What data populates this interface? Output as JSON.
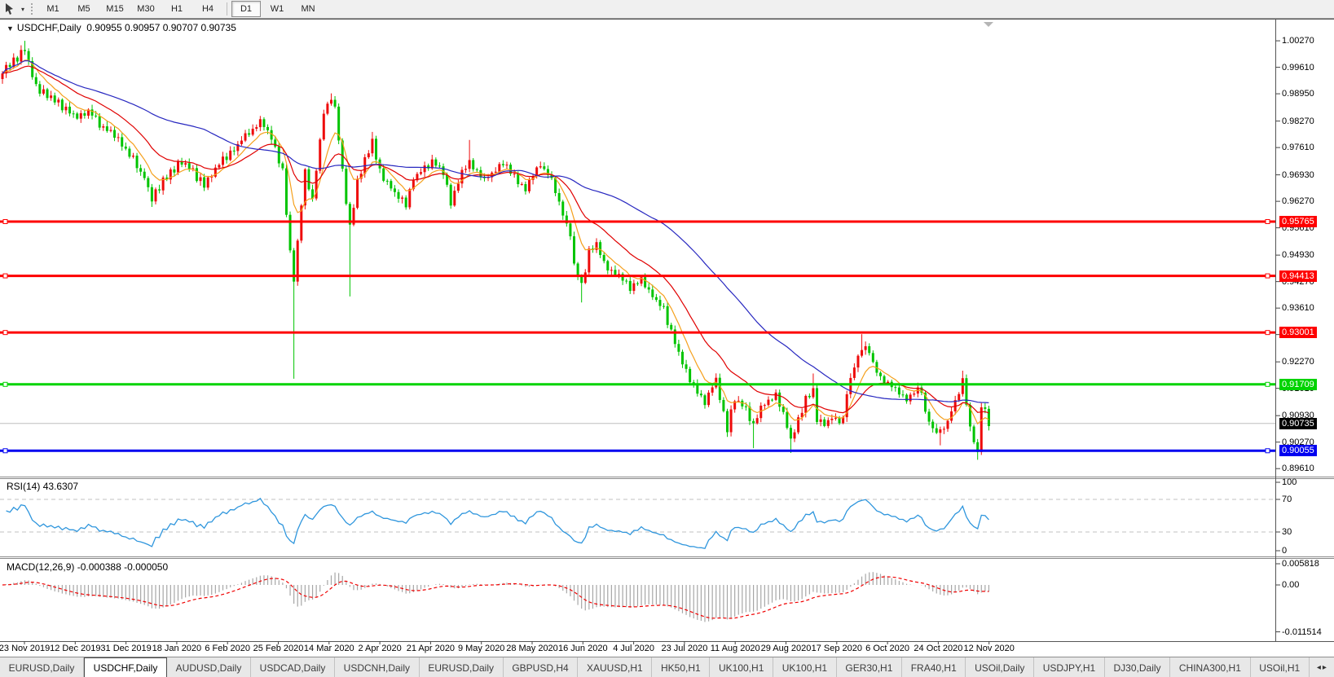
{
  "toolbar": {
    "cursor_tool": "pointer-tool",
    "dropdown_caret": "▾",
    "timeframes": [
      "M1",
      "M5",
      "M15",
      "M30",
      "H1",
      "H4",
      "D1",
      "W1",
      "MN"
    ],
    "active": "D1"
  },
  "tabs": {
    "items": [
      "EURUSD,Daily",
      "USDCHF,Daily",
      "AUDUSD,Daily",
      "USDCAD,Daily",
      "USDCNH,Daily",
      "EURUSD,Daily",
      "GBPUSD,H4",
      "XAUUSD,H1",
      "HK50,H1",
      "UK100,H1",
      "UK100,H1",
      "GER30,H1",
      "FRA40,H1",
      "USOil,Daily",
      "USDJPY,H1",
      "DJ30,Daily",
      "CHINA300,H1",
      "USOil,H1"
    ],
    "active_index": 1,
    "scroll_left": "◂",
    "scroll_right": "▸"
  },
  "chart_data": {
    "type": "candlestick",
    "header": {
      "caret": "▼",
      "symbol": "USDCHF,Daily",
      "open": "0.90955",
      "high": "0.90957",
      "low": "0.90707",
      "close": "0.90735"
    },
    "y_ticks": [
      "1.00270",
      "0.99610",
      "0.98950",
      "0.98270",
      "0.97610",
      "0.96930",
      "0.96270",
      "0.95610",
      "0.94930",
      "0.94270",
      "0.93610",
      "0.92950",
      "0.92270",
      "0.91610",
      "0.90930",
      "0.90270",
      "0.89610"
    ],
    "dates": [
      "23 Nov 2019",
      "12 Dec 2019",
      "31 Dec 2019",
      "18 Jan 2020",
      "6 Feb 2020",
      "25 Feb 2020",
      "14 Mar 2020",
      "2 Apr 2020",
      "21 Apr 2020",
      "9 May 2020",
      "28 May 2020",
      "16 Jun 2020",
      "4 Jul 2020",
      "23 Jul 2020",
      "11 Aug 2020",
      "29 Aug 2020",
      "17 Sep 2020",
      "6 Oct 2020",
      "24 Oct 2020",
      "12 Nov 2020"
    ],
    "candles": {
      "count": 265,
      "anchors": [
        [
          0,
          0.995
        ],
        [
          3,
          0.9975
        ],
        [
          6,
          1.0008
        ],
        [
          9,
          0.991
        ],
        [
          13,
          0.989
        ],
        [
          16,
          0.9862
        ],
        [
          20,
          0.984
        ],
        [
          23,
          0.9852
        ],
        [
          26,
          0.982
        ],
        [
          31,
          0.978
        ],
        [
          34,
          0.9745
        ],
        [
          38,
          0.9685
        ],
        [
          40,
          0.9635
        ],
        [
          44,
          0.969
        ],
        [
          48,
          0.9725
        ],
        [
          51,
          0.97
        ],
        [
          54,
          0.9665
        ],
        [
          57,
          0.971
        ],
        [
          62,
          0.9758
        ],
        [
          65,
          0.979
        ],
        [
          69,
          0.9825
        ],
        [
          72,
          0.979
        ],
        [
          75,
          0.97
        ],
        [
          77,
          0.95
        ],
        [
          78,
          0.943
        ],
        [
          80,
          0.962
        ],
        [
          81,
          0.97
        ],
        [
          83,
          0.963
        ],
        [
          86,
          0.985
        ],
        [
          88,
          0.988
        ],
        [
          89,
          0.986
        ],
        [
          91,
          0.97
        ],
        [
          93,
          0.956
        ],
        [
          95,
          0.968
        ],
        [
          98,
          0.975
        ],
        [
          99,
          0.978
        ],
        [
          101,
          0.97
        ],
        [
          104,
          0.966
        ],
        [
          106,
          0.964
        ],
        [
          108,
          0.9615
        ],
        [
          110,
          0.968
        ],
        [
          112,
          0.97
        ],
        [
          115,
          0.973
        ],
        [
          118,
          0.97
        ],
        [
          120,
          0.962
        ],
        [
          121,
          0.9645
        ],
        [
          123,
          0.97
        ],
        [
          125,
          0.972
        ],
        [
          129,
          0.968
        ],
        [
          132,
          0.9705
        ],
        [
          134,
          0.972
        ],
        [
          137,
          0.969
        ],
        [
          140,
          0.9655
        ],
        [
          142,
          0.97
        ],
        [
          144,
          0.972
        ],
        [
          147,
          0.968
        ],
        [
          149,
          0.962
        ],
        [
          152,
          0.954
        ],
        [
          153,
          0.947
        ],
        [
          155,
          0.942
        ],
        [
          157,
          0.95
        ],
        [
          159,
          0.952
        ],
        [
          161,
          0.947
        ],
        [
          165,
          0.944
        ],
        [
          168,
          0.941
        ],
        [
          171,
          0.943
        ],
        [
          174,
          0.939
        ],
        [
          177,
          0.936
        ],
        [
          179,
          0.93
        ],
        [
          181,
          0.925
        ],
        [
          183,
          0.92
        ],
        [
          185,
          0.917
        ],
        [
          188,
          0.913
        ],
        [
          191,
          0.9185
        ],
        [
          193,
          0.91
        ],
        [
          194,
          0.906
        ],
        [
          196,
          0.914
        ],
        [
          199,
          0.911
        ],
        [
          201,
          0.907
        ],
        [
          203,
          0.911
        ],
        [
          205,
          0.913
        ],
        [
          207,
          0.914
        ],
        [
          209,
          0.91
        ],
        [
          211,
          0.903
        ],
        [
          213,
          0.908
        ],
        [
          215,
          0.914
        ],
        [
          217,
          0.916
        ],
        [
          218,
          0.908
        ],
        [
          220,
          0.907
        ],
        [
          222,
          0.909
        ],
        [
          225,
          0.908
        ],
        [
          226,
          0.915
        ],
        [
          228,
          0.922
        ],
        [
          230,
          0.926
        ],
        [
          232,
          0.925
        ],
        [
          233,
          0.922
        ],
        [
          235,
          0.919
        ],
        [
          237,
          0.917
        ],
        [
          239,
          0.916
        ],
        [
          242,
          0.913
        ],
        [
          244,
          0.915
        ],
        [
          246,
          0.916
        ],
        [
          247,
          0.91
        ],
        [
          249,
          0.906
        ],
        [
          251,
          0.905
        ],
        [
          253,
          0.908
        ],
        [
          255,
          0.913
        ],
        [
          257,
          0.918
        ],
        [
          259,
          0.906
        ],
        [
          261,
          0.8995
        ],
        [
          262,
          0.912
        ],
        [
          263,
          0.91
        ],
        [
          264,
          0.9074
        ]
      ],
      "spikes": [
        [
          6,
          "h",
          1.0027
        ],
        [
          40,
          "l",
          0.9613
        ],
        [
          78,
          "l",
          0.9185
        ],
        [
          88,
          "h",
          0.9896
        ],
        [
          93,
          "l",
          0.939
        ],
        [
          99,
          "h",
          0.98
        ],
        [
          125,
          "h",
          0.978
        ],
        [
          155,
          "l",
          0.9375
        ],
        [
          194,
          "l",
          0.904
        ],
        [
          201,
          "l",
          0.9012
        ],
        [
          211,
          "l",
          0.9
        ],
        [
          217,
          "h",
          0.9198
        ],
        [
          230,
          "h",
          0.9296
        ],
        [
          251,
          "l",
          0.9019
        ],
        [
          257,
          "h",
          0.9205
        ],
        [
          261,
          "l",
          0.8983
        ]
      ]
    },
    "lines": [
      {
        "price": 0.95765,
        "label": "0.95765",
        "color": "#fe0000"
      },
      {
        "price": 0.94413,
        "label": "0.94413",
        "color": "#fe0000"
      },
      {
        "price": 0.93001,
        "label": "0.93001",
        "color": "#fe0000"
      },
      {
        "price": 0.91709,
        "label": "0.91709",
        "color": "#00d300"
      },
      {
        "price": 0.90055,
        "label": "0.90055",
        "color": "#0000f0"
      }
    ],
    "current_price": {
      "price": 0.90735,
      "label": "0.90735"
    },
    "moving_averages": [
      {
        "name": "ma-fast",
        "period": 8,
        "color": "#f5a01c"
      },
      {
        "name": "ma-medium",
        "period": 21,
        "color": "#e00000"
      },
      {
        "name": "ma-slow",
        "period": 55,
        "color": "#2828c0"
      }
    ],
    "colors": {
      "up": "#ee0b0b",
      "down": "#00c400",
      "grid": "#c0c0c0",
      "current_line": "#bdbdbd"
    },
    "rsi": {
      "label": "RSI(14)",
      "value": "43.6307",
      "period": 14,
      "color": "#2f96dd",
      "levels": [
        70,
        30
      ],
      "axis": [
        "100",
        "70",
        "30",
        "0"
      ]
    },
    "macd": {
      "label": "MACD(12,26,9)",
      "value": "-0.000388 -0.000050",
      "fast": 12,
      "slow": 26,
      "signal": 9,
      "axis": [
        "0.005818",
        "0.00",
        "-0.011514"
      ],
      "hist_color": "#a6a6a6",
      "signal_color": "#f00000"
    }
  }
}
